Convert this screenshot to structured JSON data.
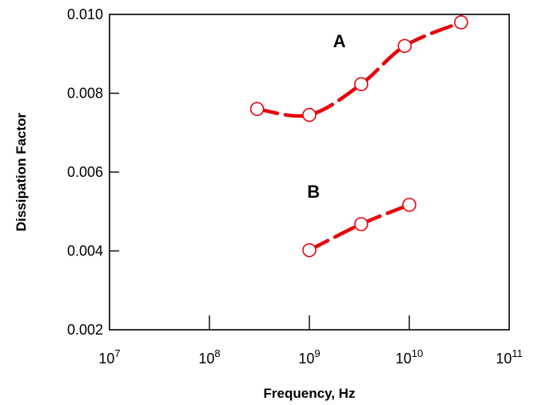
{
  "chart_data": {
    "type": "scatter",
    "xlabel": "Frequency, Hz",
    "ylabel": "Dissipation Factor",
    "xscale": "log",
    "xlim": [
      10000000,
      100000000000
    ],
    "ylim": [
      0.002,
      0.01
    ],
    "x_ticks": [
      {
        "value": 10000000,
        "base": "10",
        "exp": "7"
      },
      {
        "value": 100000000,
        "base": "10",
        "exp": "8"
      },
      {
        "value": 1000000000,
        "base": "10",
        "exp": "9"
      },
      {
        "value": 10000000000,
        "base": "10",
        "exp": "10"
      },
      {
        "value": 100000000000,
        "base": "10",
        "exp": "11"
      }
    ],
    "y_ticks": [
      {
        "value": 0.002,
        "label": "0.002"
      },
      {
        "value": 0.004,
        "label": "0.004"
      },
      {
        "value": 0.006,
        "label": "0.006"
      },
      {
        "value": 0.008,
        "label": "0.008"
      },
      {
        "value": 0.01,
        "label": "0.010"
      }
    ],
    "grid": false,
    "line_style": "dashed smooth curve",
    "series": [
      {
        "name": "A",
        "color": "#e8000b",
        "points": [
          {
            "x": 300000000,
            "y": 0.0076
          },
          {
            "x": 1000000000,
            "y": 0.00745
          },
          {
            "x": 3300000000,
            "y": 0.00823
          },
          {
            "x": 9000000000,
            "y": 0.0092
          },
          {
            "x": 33000000000,
            "y": 0.0098
          }
        ]
      },
      {
        "name": "B",
        "color": "#e8000b",
        "points": [
          {
            "x": 1000000000,
            "y": 0.00402
          },
          {
            "x": 3300000000,
            "y": 0.00468
          },
          {
            "x": 10000000000,
            "y": 0.00517
          }
        ]
      }
    ]
  }
}
